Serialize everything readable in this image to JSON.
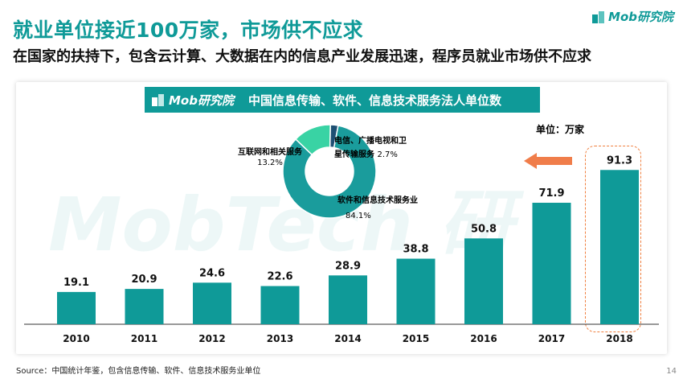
{
  "header": {
    "title": "就业单位接近100万家，市场供不应求",
    "subtitle": "在国家的扶持下，包含云计算、大数据在内的信息产业发展迅速，程序员就业市场供不应求",
    "logo_text": "Mob研究院"
  },
  "panel": {
    "banner_logo": "Mob研究院",
    "banner_title": "中国信息传输、软件、信息技术服务法人单位数",
    "unit_label": "单位：万家",
    "watermark": "MobTech 研"
  },
  "chart_data": [
    {
      "type": "bar",
      "title": "中国信息传输、软件、信息技术服务法人单位数",
      "ylabel": "单位：万家",
      "categories": [
        "2010",
        "2011",
        "2012",
        "2013",
        "2014",
        "2015",
        "2016",
        "2017",
        "2018"
      ],
      "values": [
        19.1,
        20.9,
        24.6,
        22.6,
        28.9,
        38.8,
        50.8,
        71.9,
        91.3
      ],
      "labels": [
        "19.1",
        "20.9",
        "24.6",
        "22.6",
        "28.9",
        "38.8",
        "50.8",
        "71.9",
        "91.3"
      ],
      "highlight": "2018",
      "color": "#0f9a98"
    },
    {
      "type": "pie",
      "slices": [
        {
          "label": "软件和信息技术服务业",
          "value": 84.1,
          "text": "84.1%",
          "color": "#1a9c9c"
        },
        {
          "label": "互联网和相关服务",
          "value": 13.2,
          "text": "13.2%",
          "color": "#39d3a4"
        },
        {
          "label": "电信、广播电视和卫星传输服务",
          "value": 2.7,
          "text": "2.7%",
          "color": "#1e4f73"
        }
      ]
    }
  ],
  "pie_labels": {
    "software": {
      "name": "软件和信息技术服务业",
      "pct": "84.1%"
    },
    "internet": {
      "name": "互联网和相关服务",
      "pct": "13.2%"
    },
    "telecom": {
      "line1": "电信、广播电视和卫",
      "line2": "星传输服务",
      "pct": "2.7%"
    }
  },
  "footer": {
    "source": "Source：中国统计年鉴，包含信息传输、软件、信息技术服务业单位",
    "page": "14"
  }
}
